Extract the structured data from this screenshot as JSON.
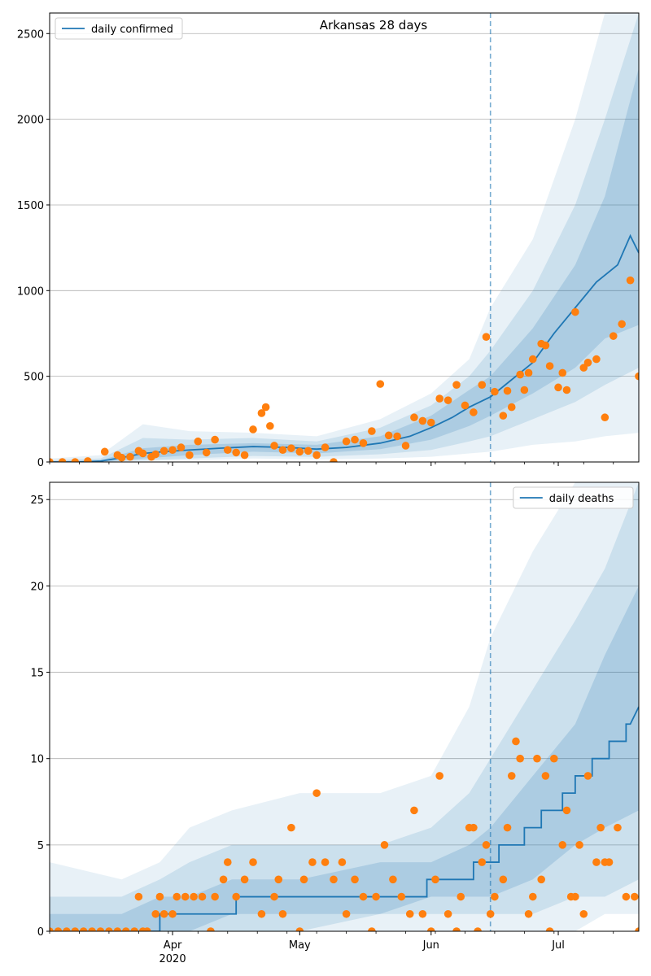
{
  "chart_data": [
    {
      "type": "line",
      "title": "Arkansas 28 days",
      "xlabel": "",
      "ylabel": "",
      "ylim": [
        0,
        2620
      ],
      "yticks": [
        0,
        500,
        1000,
        1500,
        2000,
        2500
      ],
      "xlim": [
        "2020-03-03",
        "2020-07-20"
      ],
      "xticks": [
        {
          "date": "2020-04-01",
          "label": "Apr",
          "sublabel": "2020"
        },
        {
          "date": "2020-05-01",
          "label": "May",
          "sublabel": ""
        },
        {
          "date": "2020-06-01",
          "label": "Jun",
          "sublabel": ""
        },
        {
          "date": "2020-07-01",
          "label": "Jul",
          "sublabel": ""
        }
      ],
      "grid": "horizontal",
      "legend_position": "upper-left",
      "forecast_start": "2020-06-15",
      "colors": {
        "line": "#1f77b4",
        "points": "#ff7f0e",
        "band": "#1f77b4"
      },
      "series": [
        {
          "name": "daily confirmed",
          "kind": "model-median",
          "x": [
            "2020-03-03",
            "2020-03-10",
            "2020-03-15",
            "2020-03-20",
            "2020-03-25",
            "2020-03-30",
            "2020-04-05",
            "2020-04-12",
            "2020-04-20",
            "2020-04-28",
            "2020-05-05",
            "2020-05-12",
            "2020-05-20",
            "2020-05-27",
            "2020-06-01",
            "2020-06-06",
            "2020-06-10",
            "2020-06-15",
            "2020-06-20",
            "2020-06-25",
            "2020-06-30",
            "2020-07-05",
            "2020-07-10",
            "2020-07-15",
            "2020-07-18",
            "2020-07-20"
          ],
          "values": [
            0,
            0,
            5,
            25,
            50,
            60,
            70,
            80,
            90,
            85,
            75,
            85,
            110,
            150,
            200,
            260,
            320,
            380,
            480,
            580,
            750,
            900,
            1050,
            1150,
            1320,
            1220
          ]
        },
        {
          "name": "",
          "kind": "observed",
          "x": [
            "2020-03-03",
            "2020-03-06",
            "2020-03-09",
            "2020-03-12",
            "2020-03-16",
            "2020-03-19",
            "2020-03-20",
            "2020-03-22",
            "2020-03-24",
            "2020-03-25",
            "2020-03-27",
            "2020-03-28",
            "2020-03-30",
            "2020-04-01",
            "2020-04-03",
            "2020-04-05",
            "2020-04-07",
            "2020-04-09",
            "2020-04-11",
            "2020-04-14",
            "2020-04-16",
            "2020-04-18",
            "2020-04-20",
            "2020-04-22",
            "2020-04-23",
            "2020-04-24",
            "2020-04-25",
            "2020-04-27",
            "2020-04-29",
            "2020-05-01",
            "2020-05-03",
            "2020-05-05",
            "2020-05-07",
            "2020-05-09",
            "2020-05-12",
            "2020-05-14",
            "2020-05-16",
            "2020-05-18",
            "2020-05-20",
            "2020-05-22",
            "2020-05-24",
            "2020-05-26",
            "2020-05-28",
            "2020-05-30",
            "2020-06-01",
            "2020-06-03",
            "2020-06-05",
            "2020-06-07",
            "2020-06-09",
            "2020-06-11",
            "2020-06-13",
            "2020-06-14",
            "2020-06-16",
            "2020-06-18",
            "2020-06-19",
            "2020-06-20",
            "2020-06-22",
            "2020-06-23",
            "2020-06-24",
            "2020-06-25",
            "2020-06-27",
            "2020-06-28",
            "2020-06-29",
            "2020-07-01",
            "2020-07-02",
            "2020-07-03",
            "2020-07-05",
            "2020-07-07",
            "2020-07-08",
            "2020-07-10",
            "2020-07-12",
            "2020-07-14",
            "2020-07-16",
            "2020-07-18",
            "2020-07-20"
          ],
          "values": [
            0,
            0,
            0,
            5,
            60,
            40,
            25,
            30,
            65,
            50,
            30,
            45,
            65,
            70,
            85,
            40,
            120,
            55,
            130,
            70,
            55,
            40,
            190,
            285,
            320,
            210,
            95,
            70,
            80,
            60,
            65,
            40,
            85,
            0,
            120,
            130,
            110,
            180,
            455,
            155,
            150,
            95,
            260,
            240,
            230,
            370,
            360,
            450,
            330,
            290,
            450,
            730,
            410,
            270,
            415,
            320,
            510,
            420,
            520,
            600,
            690,
            680,
            560,
            435,
            520,
            420,
            875,
            550,
            580,
            600,
            260,
            735,
            805,
            1060,
            500
          ]
        }
      ],
      "bands": [
        {
          "level": "outer",
          "x": [
            "2020-03-03",
            "2020-03-15",
            "2020-03-25",
            "2020-04-05",
            "2020-04-20",
            "2020-05-05",
            "2020-05-20",
            "2020-06-01",
            "2020-06-10",
            "2020-06-15",
            "2020-06-25",
            "2020-07-05",
            "2020-07-12",
            "2020-07-20"
          ],
          "lower": [
            0,
            0,
            5,
            10,
            20,
            15,
            20,
            30,
            50,
            60,
            100,
            120,
            150,
            170
          ],
          "upper": [
            20,
            40,
            220,
            180,
            170,
            150,
            250,
            400,
            600,
            900,
            1300,
            2000,
            2620,
            2620
          ]
        },
        {
          "level": "middle",
          "x": [
            "2020-03-03",
            "2020-03-15",
            "2020-03-25",
            "2020-04-05",
            "2020-04-20",
            "2020-05-05",
            "2020-05-20",
            "2020-06-01",
            "2020-06-10",
            "2020-06-15",
            "2020-06-25",
            "2020-07-05",
            "2020-07-12",
            "2020-07-20"
          ],
          "lower": [
            0,
            0,
            10,
            20,
            35,
            30,
            45,
            70,
            120,
            150,
            250,
            350,
            450,
            550
          ],
          "upper": [
            10,
            20,
            140,
            130,
            140,
            120,
            200,
            330,
            500,
            650,
            1000,
            1500,
            2000,
            2620
          ]
        },
        {
          "level": "inner",
          "x": [
            "2020-03-03",
            "2020-03-15",
            "2020-03-25",
            "2020-04-05",
            "2020-04-20",
            "2020-05-05",
            "2020-05-20",
            "2020-06-01",
            "2020-06-10",
            "2020-06-15",
            "2020-06-25",
            "2020-07-05",
            "2020-07-12",
            "2020-07-20"
          ],
          "lower": [
            0,
            0,
            20,
            40,
            60,
            50,
            75,
            130,
            210,
            270,
            400,
            550,
            720,
            800
          ],
          "upper": [
            5,
            10,
            80,
            100,
            110,
            100,
            150,
            270,
            420,
            500,
            780,
            1150,
            1550,
            2300
          ]
        }
      ]
    },
    {
      "type": "line",
      "title": "",
      "xlabel": "",
      "ylabel": "",
      "ylim": [
        0,
        26
      ],
      "yticks": [
        0,
        5,
        10,
        15,
        20,
        25
      ],
      "xlim": [
        "2020-03-03",
        "2020-07-20"
      ],
      "xticks": [
        {
          "date": "2020-04-01",
          "label": "Apr",
          "sublabel": "2020"
        },
        {
          "date": "2020-05-01",
          "label": "May",
          "sublabel": ""
        },
        {
          "date": "2020-06-01",
          "label": "Jun",
          "sublabel": ""
        },
        {
          "date": "2020-07-01",
          "label": "Jul",
          "sublabel": ""
        }
      ],
      "grid": "horizontal",
      "legend_position": "upper-right",
      "forecast_start": "2020-06-15",
      "colors": {
        "line": "#1f77b4",
        "points": "#ff7f0e",
        "band": "#1f77b4"
      },
      "series": [
        {
          "name": "daily deaths",
          "kind": "model-median",
          "x": [
            "2020-03-03",
            "2020-03-29",
            "2020-03-29",
            "2020-04-12",
            "2020-04-12",
            "2020-04-16",
            "2020-04-16",
            "2020-05-31",
            "2020-05-31",
            "2020-06-11",
            "2020-06-11",
            "2020-06-17",
            "2020-06-17",
            "2020-06-20",
            "2020-06-20",
            "2020-06-23",
            "2020-06-23",
            "2020-06-27",
            "2020-06-27",
            "2020-07-02",
            "2020-07-02",
            "2020-07-05",
            "2020-07-05",
            "2020-07-07",
            "2020-07-07",
            "2020-07-09",
            "2020-07-09",
            "2020-07-11",
            "2020-07-11",
            "2020-07-13",
            "2020-07-13",
            "2020-07-15",
            "2020-07-15",
            "2020-07-17",
            "2020-07-17",
            "2020-07-18",
            "2020-07-20"
          ],
          "values": [
            0,
            0,
            1,
            1,
            1,
            1,
            2,
            2,
            3,
            3,
            4,
            4,
            5,
            5,
            5,
            5,
            6,
            6,
            7,
            7,
            8,
            8,
            9,
            9,
            9,
            9,
            10,
            10,
            10,
            10,
            11,
            11,
            11,
            11,
            12,
            12,
            13
          ]
        },
        {
          "name": "",
          "kind": "observed",
          "x": [
            "2020-03-03",
            "2020-03-05",
            "2020-03-07",
            "2020-03-09",
            "2020-03-11",
            "2020-03-13",
            "2020-03-15",
            "2020-03-17",
            "2020-03-19",
            "2020-03-21",
            "2020-03-23",
            "2020-03-24",
            "2020-03-25",
            "2020-03-26",
            "2020-03-28",
            "2020-03-29",
            "2020-03-30",
            "2020-04-01",
            "2020-04-02",
            "2020-04-04",
            "2020-04-06",
            "2020-04-08",
            "2020-04-10",
            "2020-04-11",
            "2020-04-13",
            "2020-04-14",
            "2020-04-16",
            "2020-04-18",
            "2020-04-20",
            "2020-04-22",
            "2020-04-25",
            "2020-04-26",
            "2020-04-27",
            "2020-04-29",
            "2020-05-01",
            "2020-05-02",
            "2020-05-04",
            "2020-05-05",
            "2020-05-07",
            "2020-05-09",
            "2020-05-11",
            "2020-05-12",
            "2020-05-14",
            "2020-05-16",
            "2020-05-18",
            "2020-05-19",
            "2020-05-21",
            "2020-05-23",
            "2020-05-25",
            "2020-05-27",
            "2020-05-28",
            "2020-05-30",
            "2020-06-01",
            "2020-06-02",
            "2020-06-03",
            "2020-06-05",
            "2020-06-07",
            "2020-06-08",
            "2020-06-10",
            "2020-06-11",
            "2020-06-12",
            "2020-06-13",
            "2020-06-14",
            "2020-06-15",
            "2020-06-16",
            "2020-06-18",
            "2020-06-19",
            "2020-06-20",
            "2020-06-21",
            "2020-06-22",
            "2020-06-24",
            "2020-06-25",
            "2020-06-26",
            "2020-06-27",
            "2020-06-28",
            "2020-06-29",
            "2020-06-30",
            "2020-07-02",
            "2020-07-03",
            "2020-07-04",
            "2020-07-05",
            "2020-07-06",
            "2020-07-07",
            "2020-07-08",
            "2020-07-10",
            "2020-07-11",
            "2020-07-12",
            "2020-07-13",
            "2020-07-15",
            "2020-07-17",
            "2020-07-19",
            "2020-07-20"
          ],
          "values": [
            0,
            0,
            0,
            0,
            0,
            0,
            0,
            0,
            0,
            0,
            0,
            2,
            0,
            0,
            1,
            2,
            1,
            1,
            2,
            2,
            2,
            2,
            0,
            2,
            3,
            4,
            2,
            3,
            4,
            1,
            2,
            3,
            1,
            6,
            0,
            3,
            4,
            8,
            4,
            3,
            4,
            1,
            3,
            2,
            0,
            2,
            5,
            3,
            2,
            1,
            7,
            1,
            0,
            3,
            9,
            1,
            0,
            2,
            6,
            6,
            0,
            4,
            5,
            1,
            2,
            3,
            6,
            9,
            11,
            10,
            1,
            2,
            10,
            3,
            9,
            0,
            10,
            5,
            7,
            2,
            2,
            5,
            1,
            9,
            4,
            6,
            4,
            4,
            6,
            2,
            2,
            0
          ]
        }
      ],
      "bands": [
        {
          "level": "outer",
          "x": [
            "2020-03-03",
            "2020-03-20",
            "2020-03-29",
            "2020-04-05",
            "2020-04-15",
            "2020-05-01",
            "2020-05-20",
            "2020-06-01",
            "2020-06-10",
            "2020-06-15",
            "2020-06-25",
            "2020-07-05",
            "2020-07-12",
            "2020-07-20"
          ],
          "lower": [
            0,
            0,
            0,
            0,
            0,
            0,
            0,
            0,
            0,
            0,
            0,
            0,
            1,
            1
          ],
          "upper": [
            4,
            3,
            4,
            6,
            7,
            8,
            8,
            9,
            13,
            17,
            22,
            26,
            26,
            26
          ]
        },
        {
          "level": "middle",
          "x": [
            "2020-03-03",
            "2020-03-20",
            "2020-03-29",
            "2020-04-05",
            "2020-04-15",
            "2020-05-01",
            "2020-05-20",
            "2020-06-01",
            "2020-06-10",
            "2020-06-15",
            "2020-06-25",
            "2020-07-05",
            "2020-07-12",
            "2020-07-20"
          ],
          "lower": [
            0,
            0,
            0,
            0,
            0,
            0,
            1,
            1,
            1,
            1,
            1,
            2,
            2,
            3
          ],
          "upper": [
            2,
            2,
            3,
            4,
            5,
            5,
            5,
            6,
            8,
            10,
            14,
            18,
            21,
            26
          ]
        },
        {
          "level": "inner",
          "x": [
            "2020-03-03",
            "2020-03-20",
            "2020-03-29",
            "2020-04-05",
            "2020-04-15",
            "2020-05-01",
            "2020-05-20",
            "2020-06-01",
            "2020-06-10",
            "2020-06-15",
            "2020-06-25",
            "2020-07-05",
            "2020-07-12",
            "2020-07-20"
          ],
          "lower": [
            0,
            0,
            0,
            0,
            1,
            1,
            1,
            2,
            2,
            2,
            3,
            5,
            6,
            7
          ],
          "upper": [
            1,
            1,
            2,
            2,
            3,
            3,
            4,
            4,
            5,
            6,
            9,
            12,
            16,
            20
          ]
        }
      ]
    }
  ]
}
